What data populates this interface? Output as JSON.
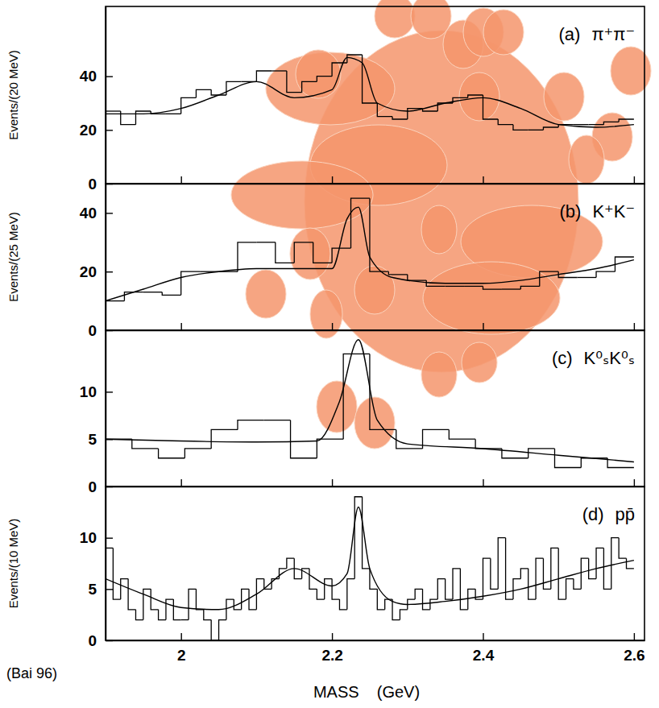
{
  "chart_data": [
    {
      "type": "histogram",
      "label": "(a)",
      "title": "π⁺π⁻",
      "ylabel": "Events/(20 MeV)",
      "xlim": [
        1.9,
        2.614
      ],
      "xticks": [
        2,
        2.2,
        2.4,
        2.6
      ],
      "ylim": [
        0,
        66
      ],
      "yticks": [
        0,
        20,
        40
      ],
      "tick_labels": "y",
      "bins": [
        1.9,
        1.92,
        1.94,
        1.96,
        1.98,
        2.0,
        2.02,
        2.04,
        2.06,
        2.08,
        2.1,
        2.12,
        2.14,
        2.16,
        2.18,
        2.2,
        2.22,
        2.24,
        2.26,
        2.28,
        2.3,
        2.32,
        2.34,
        2.36,
        2.38,
        2.4,
        2.42,
        2.44,
        2.46,
        2.48,
        2.5,
        2.52,
        2.54,
        2.56,
        2.58,
        2.6
      ],
      "counts": [
        27,
        22,
        27,
        26,
        26,
        32,
        35,
        33,
        38,
        38,
        42,
        42,
        34,
        38,
        40,
        45,
        48,
        30,
        25,
        24,
        28,
        27,
        30,
        32,
        33,
        24,
        22,
        20,
        20,
        21,
        22,
        22,
        22,
        23,
        24
      ],
      "curve": {
        "x": [
          1.9,
          1.95,
          2.0,
          2.05,
          2.1,
          2.15,
          2.2,
          2.22,
          2.24,
          2.26,
          2.3,
          2.35,
          2.4,
          2.45,
          2.5,
          2.55,
          2.6
        ],
        "y": [
          26,
          26,
          28,
          33,
          38,
          32,
          35,
          47,
          45,
          30,
          27,
          30,
          32,
          28,
          22,
          21,
          22
        ]
      }
    },
    {
      "type": "histogram",
      "label": "(b)",
      "title": "K⁺K⁻",
      "ylabel": "Events/(25 MeV)",
      "xlim": [
        1.9,
        2.614
      ],
      "xticks": [
        2,
        2.2,
        2.4,
        2.6
      ],
      "ylim": [
        0,
        50
      ],
      "yticks": [
        0,
        20,
        40
      ],
      "tick_labels": "y",
      "bins": [
        1.9,
        1.925,
        1.95,
        1.975,
        2.0,
        2.025,
        2.05,
        2.075,
        2.1,
        2.125,
        2.15,
        2.175,
        2.2,
        2.225,
        2.25,
        2.275,
        2.3,
        2.325,
        2.35,
        2.375,
        2.4,
        2.425,
        2.45,
        2.475,
        2.5,
        2.525,
        2.55,
        2.575,
        2.6
      ],
      "counts": [
        10,
        13,
        13,
        12,
        20,
        20,
        20,
        30,
        30,
        23,
        30,
        23,
        28,
        45,
        20,
        19,
        17,
        15,
        15,
        15,
        14,
        14,
        15,
        20,
        18,
        18,
        20,
        25
      ],
      "curve": {
        "x": [
          1.9,
          1.95,
          2.0,
          2.05,
          2.1,
          2.15,
          2.2,
          2.22,
          2.235,
          2.25,
          2.28,
          2.35,
          2.4,
          2.45,
          2.5,
          2.55,
          2.6
        ],
        "y": [
          10,
          14,
          18,
          20,
          21,
          21,
          21,
          38,
          42,
          25,
          18,
          16,
          16,
          17,
          19,
          21,
          24
        ]
      }
    },
    {
      "type": "histogram",
      "label": "(c)",
      "title": "K⁰ₛK⁰ₛ",
      "xlim": [
        1.9,
        2.614
      ],
      "xticks": [
        2,
        2.2,
        2.4,
        2.6
      ],
      "ylim": [
        0,
        16.5
      ],
      "yticks": [
        0,
        5,
        10
      ],
      "tick_labels": "y",
      "bins": [
        1.9,
        1.935,
        1.97,
        2.005,
        2.04,
        2.075,
        2.11,
        2.145,
        2.18,
        2.215,
        2.25,
        2.285,
        2.32,
        2.355,
        2.39,
        2.425,
        2.46,
        2.495,
        2.53,
        2.565,
        2.6
      ],
      "counts": [
        5,
        4,
        3,
        4,
        6,
        7,
        7,
        3,
        5,
        14,
        6,
        4,
        6,
        5,
        4,
        3,
        4,
        2,
        3,
        2
      ],
      "curve": {
        "x": [
          1.9,
          2.0,
          2.1,
          2.18,
          2.21,
          2.235,
          2.26,
          2.3,
          2.4,
          2.5,
          2.6
        ],
        "y": [
          5,
          4.8,
          4.7,
          4.8,
          9,
          15.5,
          7,
          4.5,
          4,
          3.3,
          2.6
        ]
      }
    },
    {
      "type": "histogram",
      "label": "(d)",
      "title": "pp̄",
      "ylabel": "Events/(10 MeV)",
      "xlabel": "MASS    (GeV)",
      "annotation": "(Bai 96)",
      "xlim": [
        1.9,
        2.614
      ],
      "xticks": [
        2,
        2.2,
        2.4,
        2.6
      ],
      "ylim": [
        0,
        15
      ],
      "yticks": [
        0,
        5,
        10
      ],
      "bins": [
        1.9,
        1.91,
        1.92,
        1.93,
        1.94,
        1.95,
        1.96,
        1.97,
        1.98,
        1.99,
        2.0,
        2.01,
        2.02,
        2.03,
        2.04,
        2.05,
        2.06,
        2.07,
        2.08,
        2.09,
        2.1,
        2.11,
        2.12,
        2.13,
        2.14,
        2.15,
        2.16,
        2.17,
        2.18,
        2.19,
        2.2,
        2.21,
        2.22,
        2.23,
        2.24,
        2.25,
        2.26,
        2.27,
        2.28,
        2.29,
        2.3,
        2.31,
        2.32,
        2.33,
        2.34,
        2.35,
        2.36,
        2.37,
        2.38,
        2.39,
        2.4,
        2.41,
        2.42,
        2.43,
        2.44,
        2.45,
        2.46,
        2.47,
        2.48,
        2.49,
        2.5,
        2.51,
        2.52,
        2.53,
        2.54,
        2.55,
        2.56,
        2.57,
        2.58,
        2.59,
        2.6
      ],
      "counts": [
        9,
        4,
        6,
        3,
        2,
        5,
        3,
        2,
        4,
        2,
        2,
        5,
        3,
        2,
        0,
        2,
        4,
        3,
        5,
        3,
        6,
        5,
        6,
        7,
        8,
        6,
        7,
        5,
        4,
        6,
        4,
        3,
        6,
        14,
        7,
        5,
        3,
        4,
        2,
        3,
        4,
        5,
        3,
        4,
        6,
        4,
        7,
        3,
        5,
        4,
        8,
        5,
        10,
        4,
        6,
        7,
        4,
        8,
        5,
        9,
        4,
        6,
        5,
        8,
        6,
        9,
        5,
        10,
        8,
        7
      ],
      "curve": {
        "x": [
          1.9,
          1.95,
          2.0,
          2.05,
          2.1,
          2.15,
          2.2,
          2.22,
          2.235,
          2.25,
          2.28,
          2.3,
          2.35,
          2.4,
          2.45,
          2.5,
          2.55,
          2.6
        ],
        "y": [
          6,
          4.5,
          3.2,
          3,
          4.5,
          7,
          5.3,
          6.5,
          13,
          7,
          3.8,
          3.5,
          3.8,
          4.3,
          5,
          6,
          7,
          7.8
        ]
      }
    }
  ]
}
